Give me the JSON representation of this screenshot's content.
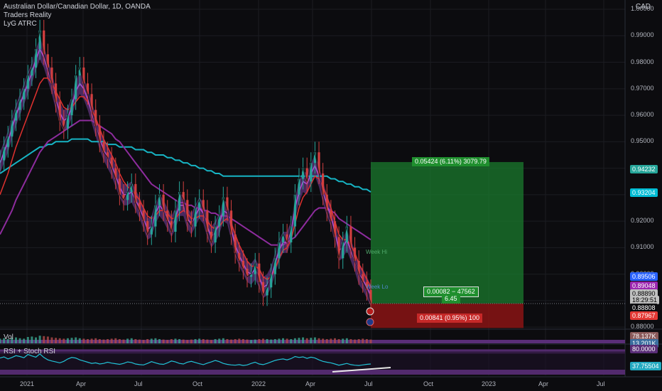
{
  "header": {
    "title": "Australian Dollar/Canadian Dollar, 1D, OANDA",
    "indicator_1": "Traders Reality",
    "indicator_2": "LyG ATRC"
  },
  "currency": "CAD",
  "chart_data": {
    "type": "line",
    "yaxis_ticks": [
      "1.00000",
      "0.99000",
      "0.98000",
      "0.97000",
      "0.96000",
      "0.95000",
      "0.94000",
      "0.93000",
      "0.92000",
      "0.91000",
      "0.90000",
      "0.89000",
      "0.88000"
    ],
    "ylim": [
      0.8795,
      1.0035
    ],
    "xaxis_ticks": [
      "2021",
      "Apr",
      "Jul",
      "Oct",
      "2022",
      "Apr",
      "Jul",
      "Oct",
      "2023",
      "Apr",
      "Jul"
    ],
    "price_series_close": [
      0.943,
      0.948,
      0.952,
      0.958,
      0.962,
      0.966,
      0.97,
      0.975,
      0.978,
      0.985,
      0.992,
      0.983,
      0.978,
      0.972,
      0.965,
      0.958,
      0.955,
      0.96,
      0.966,
      0.975,
      0.978,
      0.972,
      0.968,
      0.962,
      0.956,
      0.95,
      0.946,
      0.944,
      0.94,
      0.936,
      0.93,
      0.928,
      0.931,
      0.934,
      0.927,
      0.924,
      0.92,
      0.915,
      0.918,
      0.926,
      0.93,
      0.924,
      0.92,
      0.916,
      0.924,
      0.931,
      0.928,
      0.92,
      0.918,
      0.925,
      0.928,
      0.924,
      0.916,
      0.912,
      0.918,
      0.922,
      0.929,
      0.924,
      0.915,
      0.908,
      0.905,
      0.902,
      0.899,
      0.9,
      0.904,
      0.897,
      0.892,
      0.895,
      0.9,
      0.906,
      0.912,
      0.915,
      0.912,
      0.918,
      0.93,
      0.936,
      0.94,
      0.935,
      0.942,
      0.946,
      0.938,
      0.93,
      0.924,
      0.92,
      0.914,
      0.906,
      0.912,
      0.918,
      0.91,
      0.905,
      0.9,
      0.897,
      0.894,
      0.889
    ],
    "ma_purple_fast": [
      0.942,
      0.946,
      0.95,
      0.955,
      0.96,
      0.964,
      0.968,
      0.972,
      0.976,
      0.981,
      0.985,
      0.982,
      0.977,
      0.972,
      0.966,
      0.961,
      0.958,
      0.959,
      0.963,
      0.969,
      0.972,
      0.97,
      0.966,
      0.961,
      0.956,
      0.951,
      0.947,
      0.944,
      0.941,
      0.937,
      0.933,
      0.93,
      0.93,
      0.931,
      0.928,
      0.925,
      0.921,
      0.917,
      0.918,
      0.923,
      0.926,
      0.924,
      0.921,
      0.918,
      0.921,
      0.926,
      0.926,
      0.921,
      0.919,
      0.922,
      0.925,
      0.923,
      0.918,
      0.914,
      0.916,
      0.919,
      0.924,
      0.923,
      0.917,
      0.911,
      0.907,
      0.904,
      0.901,
      0.9,
      0.902,
      0.899,
      0.895,
      0.896,
      0.899,
      0.904,
      0.909,
      0.912,
      0.912,
      0.916,
      0.925,
      0.931,
      0.935,
      0.934,
      0.938,
      0.941,
      0.937,
      0.931,
      0.926,
      0.922,
      0.916,
      0.909,
      0.91,
      0.913,
      0.909,
      0.905,
      0.9,
      0.898,
      0.895,
      0.892
    ],
    "ma_red": [
      0.93,
      0.934,
      0.938,
      0.943,
      0.948,
      0.952,
      0.956,
      0.96,
      0.964,
      0.968,
      0.972,
      0.974,
      0.974,
      0.972,
      0.969,
      0.966,
      0.963,
      0.962,
      0.963,
      0.965,
      0.967,
      0.967,
      0.965,
      0.962,
      0.959,
      0.955,
      0.951,
      0.948,
      0.945,
      0.942,
      0.938,
      0.935,
      0.933,
      0.932,
      0.93,
      0.928,
      0.925,
      0.922,
      0.921,
      0.922,
      0.924,
      0.924,
      0.923,
      0.921,
      0.921,
      0.923,
      0.924,
      0.923,
      0.921,
      0.921,
      0.922,
      0.922,
      0.92,
      0.918,
      0.917,
      0.918,
      0.92,
      0.921,
      0.919,
      0.915,
      0.911,
      0.908,
      0.905,
      0.903,
      0.903,
      0.902,
      0.899,
      0.898,
      0.899,
      0.902,
      0.906,
      0.909,
      0.91,
      0.913,
      0.919,
      0.925,
      0.929,
      0.931,
      0.934,
      0.937,
      0.936,
      0.933,
      0.929,
      0.925,
      0.92,
      0.915,
      0.913,
      0.913,
      0.911,
      0.908,
      0.904,
      0.901,
      0.898,
      0.895
    ],
    "ma_purple_slow": [
      0.915,
      0.918,
      0.921,
      0.924,
      0.928,
      0.931,
      0.934,
      0.937,
      0.94,
      0.943,
      0.946,
      0.948,
      0.95,
      0.951,
      0.952,
      0.953,
      0.954,
      0.955,
      0.956,
      0.957,
      0.958,
      0.958,
      0.958,
      0.958,
      0.957,
      0.956,
      0.955,
      0.954,
      0.953,
      0.951,
      0.95,
      0.948,
      0.946,
      0.944,
      0.942,
      0.94,
      0.938,
      0.936,
      0.934,
      0.933,
      0.932,
      0.931,
      0.93,
      0.929,
      0.928,
      0.927,
      0.927,
      0.926,
      0.926,
      0.925,
      0.925,
      0.924,
      0.924,
      0.923,
      0.923,
      0.922,
      0.922,
      0.922,
      0.921,
      0.92,
      0.919,
      0.918,
      0.917,
      0.916,
      0.915,
      0.914,
      0.913,
      0.912,
      0.911,
      0.911,
      0.911,
      0.911,
      0.912,
      0.913,
      0.914,
      0.916,
      0.918,
      0.92,
      0.922,
      0.924,
      0.925,
      0.925,
      0.925,
      0.924,
      0.923,
      0.921,
      0.92,
      0.919,
      0.918,
      0.917,
      0.916,
      0.915,
      0.914,
      0.913
    ],
    "ma_cyan_200": [
      0.938,
      0.939,
      0.94,
      0.941,
      0.942,
      0.943,
      0.944,
      0.945,
      0.946,
      0.947,
      0.948,
      0.948,
      0.949,
      0.949,
      0.95,
      0.95,
      0.95,
      0.95,
      0.951,
      0.951,
      0.951,
      0.951,
      0.951,
      0.95,
      0.95,
      0.95,
      0.95,
      0.949,
      0.949,
      0.949,
      0.948,
      0.948,
      0.948,
      0.948,
      0.947,
      0.947,
      0.947,
      0.946,
      0.946,
      0.945,
      0.945,
      0.945,
      0.944,
      0.944,
      0.943,
      0.943,
      0.942,
      0.942,
      0.941,
      0.941,
      0.94,
      0.94,
      0.939,
      0.939,
      0.938,
      0.938,
      0.937,
      0.937,
      0.937,
      0.937,
      0.937,
      0.937,
      0.937,
      0.937,
      0.937,
      0.937,
      0.937,
      0.937,
      0.937,
      0.937,
      0.937,
      0.937,
      0.937,
      0.937,
      0.937,
      0.937,
      0.937,
      0.937,
      0.937,
      0.937,
      0.937,
      0.937,
      0.937,
      0.936,
      0.936,
      0.935,
      0.935,
      0.934,
      0.934,
      0.933,
      0.933,
      0.932,
      0.932,
      0.931
    ],
    "position": {
      "entry": 0.8889,
      "target": 0.94232,
      "stop": 0.87967,
      "target_label": "0.05424 (6.11%) 3079.79",
      "entry_label_1": "0.00082 − 47562",
      "entry_label_2": "6.45",
      "stop_label": "0.00841 (0.95%) 100"
    },
    "level_labels": [
      "Week Hi",
      "Week Lo"
    ],
    "price_badges": [
      {
        "text": "0.94232",
        "color": "#26a69a"
      },
      {
        "text": "0.93204",
        "color": "#00bcd4"
      },
      {
        "text": "0.89506",
        "color": "#2962ff"
      },
      {
        "text": "0.89048",
        "color": "#9c27b0"
      },
      {
        "text": "0.88890",
        "color": "#c0c0c0"
      },
      {
        "text": "18:29:51",
        "color": "#c0c0c0"
      },
      {
        "text": "0.88808",
        "color": "#0c0c0f"
      },
      {
        "text": "0.87967",
        "color": "#e53935"
      }
    ]
  },
  "volume_pane": {
    "label": "Vol",
    "badge_1": "78.137K",
    "badge_2": "13.201K",
    "values": [
      0.55,
      0.6,
      0.5,
      0.65,
      0.7,
      0.6,
      0.55,
      0.75,
      0.8,
      0.7,
      0.9,
      0.85,
      0.8,
      0.7,
      0.65,
      0.6,
      0.55,
      0.6,
      0.65,
      0.7,
      0.6,
      0.55,
      0.5,
      0.55,
      0.6,
      0.5,
      0.45,
      0.5,
      0.55,
      0.6,
      0.5,
      0.45,
      0.55,
      0.6,
      0.5,
      0.45,
      0.4,
      0.5,
      0.55,
      0.6,
      0.5,
      0.45,
      0.4,
      0.5,
      0.55,
      0.5,
      0.45,
      0.4,
      0.45,
      0.5,
      0.55,
      0.5,
      0.45,
      0.4,
      0.5,
      0.55,
      0.6,
      0.5,
      0.45,
      0.5,
      0.55,
      0.5,
      0.45,
      0.4,
      0.45,
      0.5,
      0.55,
      0.5,
      0.45,
      0.5,
      0.55,
      0.6,
      0.55,
      0.5,
      0.6,
      0.65,
      0.7,
      0.6,
      0.65,
      0.7,
      0.6,
      0.55,
      0.5,
      0.55,
      0.6,
      0.5,
      0.55,
      0.6,
      0.5,
      0.45,
      0.5,
      0.55,
      0.5,
      0.45
    ]
  },
  "rsi_pane": {
    "label": "RSI + Stoch RSI",
    "badge_top": "80.0000",
    "badge_bottom": "37.75504",
    "values": [
      58,
      62,
      55,
      60,
      66,
      63,
      59,
      70,
      65,
      61,
      72,
      60,
      52,
      48,
      45,
      42,
      47,
      55,
      60,
      58,
      52,
      48,
      44,
      40,
      42,
      38,
      40,
      44,
      41,
      39,
      37,
      40,
      45,
      43,
      38,
      36,
      35,
      40,
      46,
      42,
      38,
      37,
      42,
      48,
      45,
      40,
      38,
      44,
      47,
      43,
      39,
      36,
      41,
      45,
      50,
      46,
      40,
      37,
      35,
      34,
      36,
      33,
      35,
      40,
      44,
      38,
      36,
      40,
      45,
      50,
      53,
      55,
      52,
      56,
      63,
      60,
      62,
      57,
      61,
      58,
      52,
      47,
      44,
      42,
      38,
      34,
      37,
      40,
      36,
      34,
      33,
      35,
      37,
      38
    ]
  }
}
